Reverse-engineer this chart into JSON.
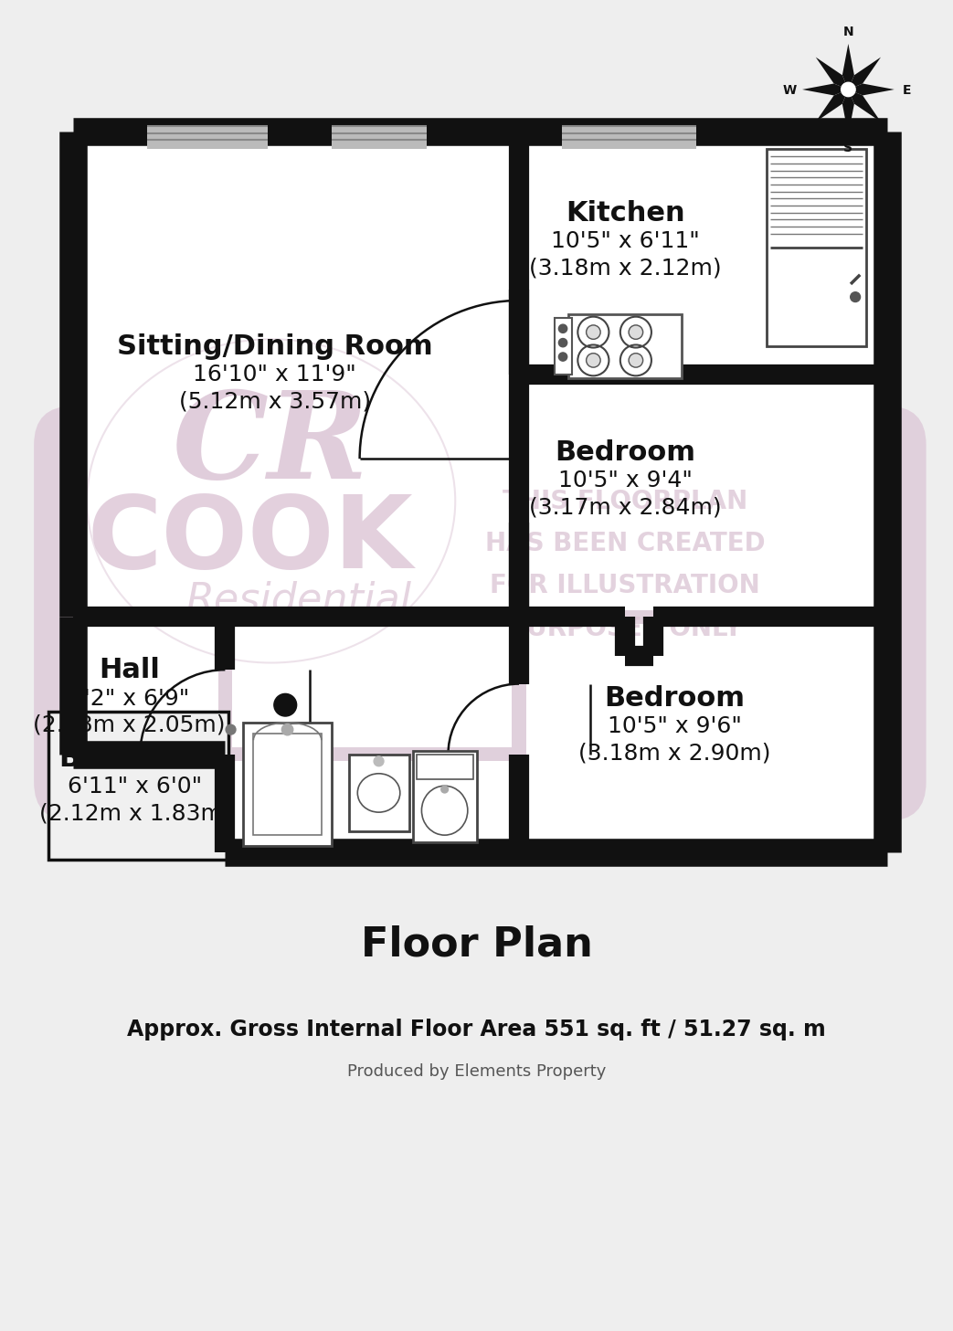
{
  "bg_color": "#eeeeee",
  "wall_color": "#111111",
  "floor_color": "#ffffff",
  "highlight_color": "#ddc8d8",
  "rooms": {
    "sitting_dining": {
      "label": "Sitting/Dining Room",
      "dim1": "16'10\" x 11'9\"",
      "dim2": "(5.12m x 3.57m)"
    },
    "kitchen": {
      "label": "Kitchen",
      "dim1": "10'5\" x 6'11\"",
      "dim2": "(3.18m x 2.12m)"
    },
    "bedroom1": {
      "label": "Bedroom",
      "dim1": "10'5\" x 9'4\"",
      "dim2": "(3.17m x 2.84m)"
    },
    "bedroom2": {
      "label": "Bedroom",
      "dim1": "10'5\" x 9'6\"",
      "dim2": "(3.18m x 2.90m)"
    },
    "hall": {
      "label": "Hall",
      "dim1": "7'2\" x 6'9\"",
      "dim2": "(2.18m x 2.05m)"
    },
    "bathroom": {
      "label": "Bathroom",
      "dim1": "6'11\" x 6'0\"",
      "dim2": "(2.12m x 1.83m)"
    }
  },
  "watermark_lines": [
    "THIS FLOORPLAN",
    "HAS BEEN CREATED",
    "FOR ILLUSTRATION",
    "PURPOSES ONLY"
  ],
  "title": "Floor Plan",
  "subtitle_bold": "Approx. Gross Internal Floor Area 551 sq. ft / 51.27 sq. m",
  "subtitle_light": "Produced by Elements Property"
}
